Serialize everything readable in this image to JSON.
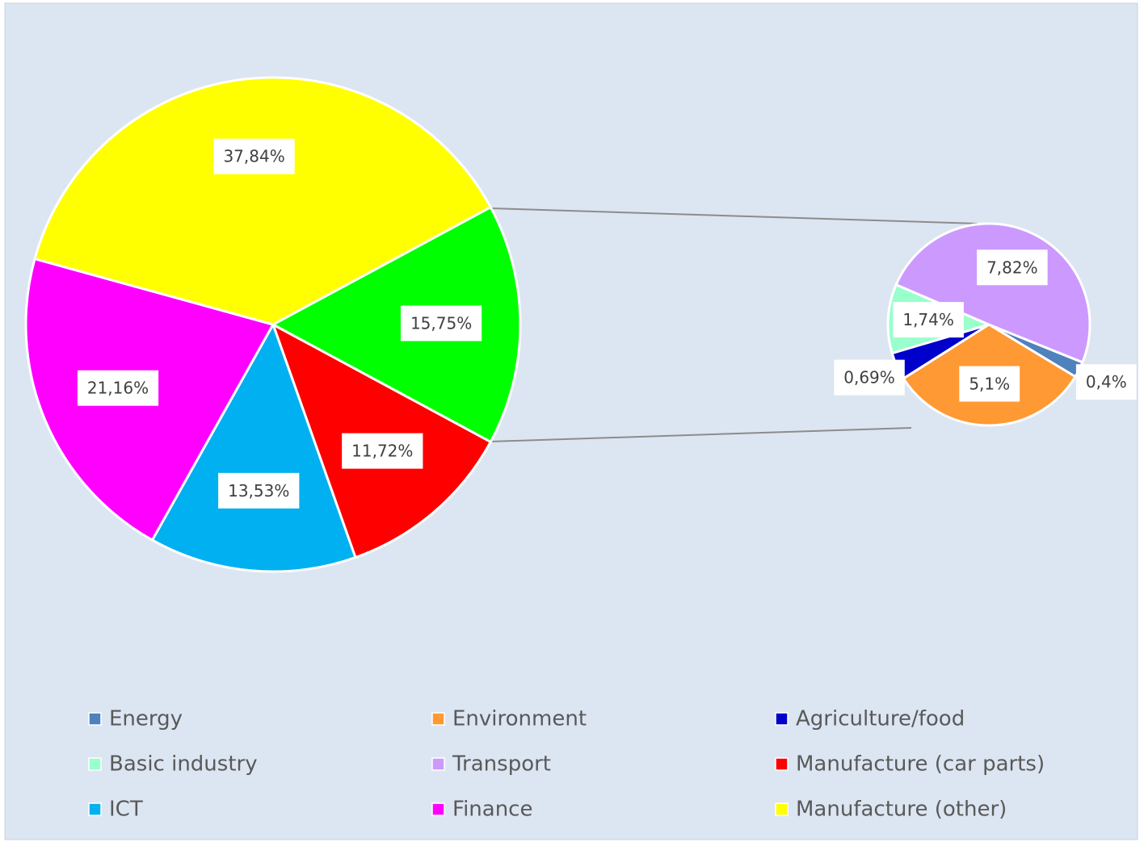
{
  "chart_data": [
    {
      "type": "pie",
      "categories": [
        "Manufacture (car parts)",
        "ICT",
        "Finance",
        "Manufacture (other)",
        null
      ],
      "values": [
        11.72,
        13.53,
        21.16,
        37.84,
        15.75
      ],
      "value_labels": [
        "11,72%",
        "13,53%",
        "21,16%",
        "37,84%",
        "15,75%"
      ],
      "colors": [
        "#ff0000",
        "#00b0f0",
        "#ff00ff",
        "#ffff00",
        "#00ff00"
      ]
    },
    {
      "type": "pie",
      "categories": [
        "Energy",
        "Environment",
        "Agriculture/food",
        "Basic industry",
        "Transport"
      ],
      "values": [
        0.4,
        5.1,
        0.69,
        1.74,
        7.82
      ],
      "value_labels": [
        "0,4%",
        "5,1%",
        "0,69%",
        "1,74%",
        "7,82%"
      ],
      "colors": [
        "#4f81bd",
        "#ff9933",
        "#0000cc",
        "#99ffcc",
        "#cc99ff"
      ]
    }
  ]
}
